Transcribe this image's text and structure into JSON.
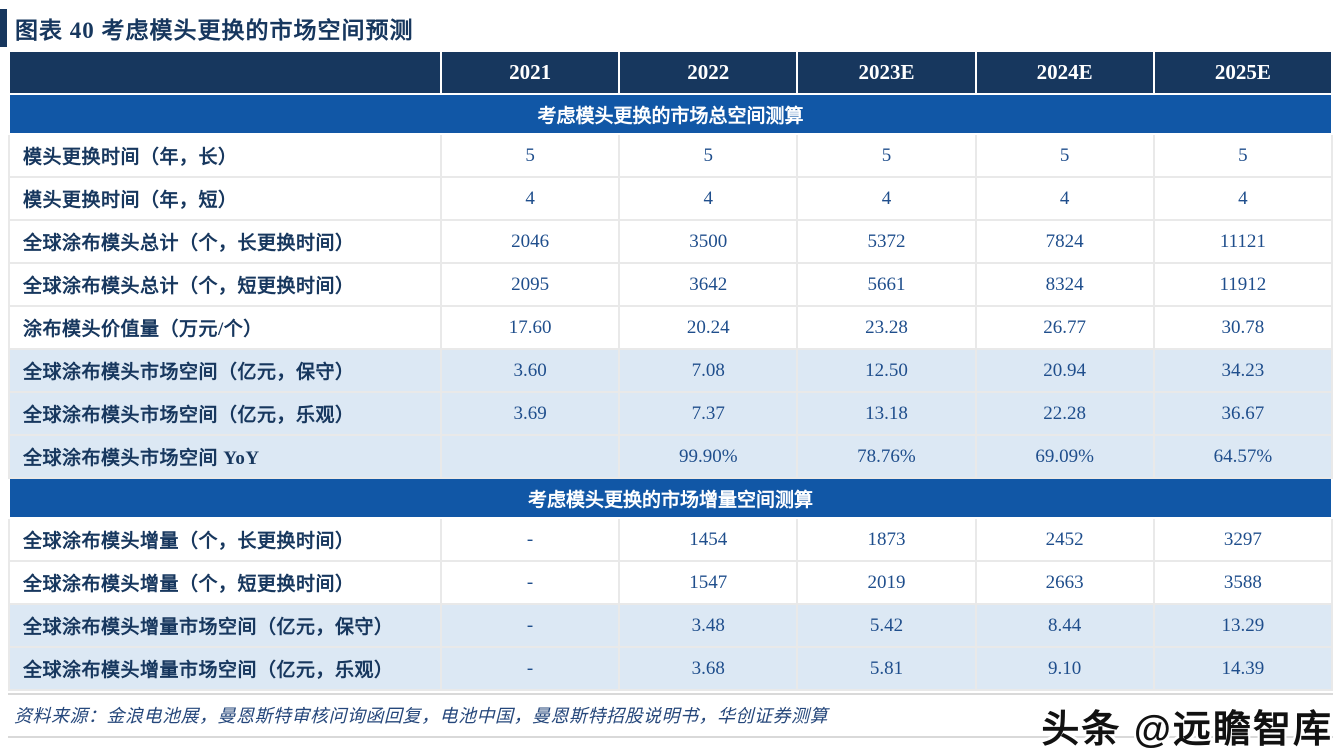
{
  "title": "图表 40  考虑模头更换的市场空间预测",
  "columns": [
    "2021",
    "2022",
    "2023E",
    "2024E",
    "2025E"
  ],
  "sections": [
    {
      "header": "考虑模头更换的市场总空间测算",
      "rows": [
        {
          "label": "模头更换时间（年，长）",
          "values": [
            "5",
            "5",
            "5",
            "5",
            "5"
          ]
        },
        {
          "label": "模头更换时间（年，短）",
          "values": [
            "4",
            "4",
            "4",
            "4",
            "4"
          ]
        },
        {
          "label": "全球涂布模头总计（个，长更换时间）",
          "values": [
            "2046",
            "3500",
            "5372",
            "7824",
            "11121"
          ]
        },
        {
          "label": "全球涂布模头总计（个，短更换时间）",
          "values": [
            "2095",
            "3642",
            "5661",
            "8324",
            "11912"
          ]
        },
        {
          "label": "涂布模头价值量（万元/个）",
          "values": [
            "17.60",
            "20.24",
            "23.28",
            "26.77",
            "30.78"
          ]
        },
        {
          "label": "全球涂布模头市场空间（亿元，保守）",
          "values": [
            "3.60",
            "7.08",
            "12.50",
            "20.94",
            "34.23"
          ]
        },
        {
          "label": "全球涂布模头市场空间（亿元，乐观）",
          "values": [
            "3.69",
            "7.37",
            "13.18",
            "22.28",
            "36.67"
          ]
        },
        {
          "label": "全球涂布模头市场空间 YoY",
          "values": [
            "",
            "99.90%",
            "78.76%",
            "69.09%",
            "64.57%"
          ]
        }
      ]
    },
    {
      "header": "考虑模头更换的市场增量空间测算",
      "rows": [
        {
          "label": "全球涂布模头增量（个，长更换时间）",
          "values": [
            "-",
            "1454",
            "1873",
            "2452",
            "3297"
          ]
        },
        {
          "label": "全球涂布模头增量（个，短更换时间）",
          "values": [
            "-",
            "1547",
            "2019",
            "2663",
            "3588"
          ]
        },
        {
          "label": "全球涂布模头增量市场空间（亿元，保守）",
          "values": [
            "-",
            "3.48",
            "5.42",
            "8.44",
            "13.29"
          ]
        },
        {
          "label": "全球涂布模头增量市场空间（亿元，乐观）",
          "values": [
            "-",
            "3.68",
            "5.81",
            "9.10",
            "14.39"
          ]
        }
      ]
    }
  ],
  "footer": {
    "source": "资料来源：金浪电池展，曼恩斯特审核问询函回复，电池中国，曼恩斯特招股说明书，华创证券测算"
  },
  "watermark": "头条 @远瞻智库",
  "colors": {
    "header_bg": "#17375E",
    "section_band_bg": "#1157A6",
    "shaded_row_bg": "#DCE8F4",
    "label_text": "#17375E",
    "value_text": "#1F4E8C",
    "footer_text": "#25477B"
  }
}
